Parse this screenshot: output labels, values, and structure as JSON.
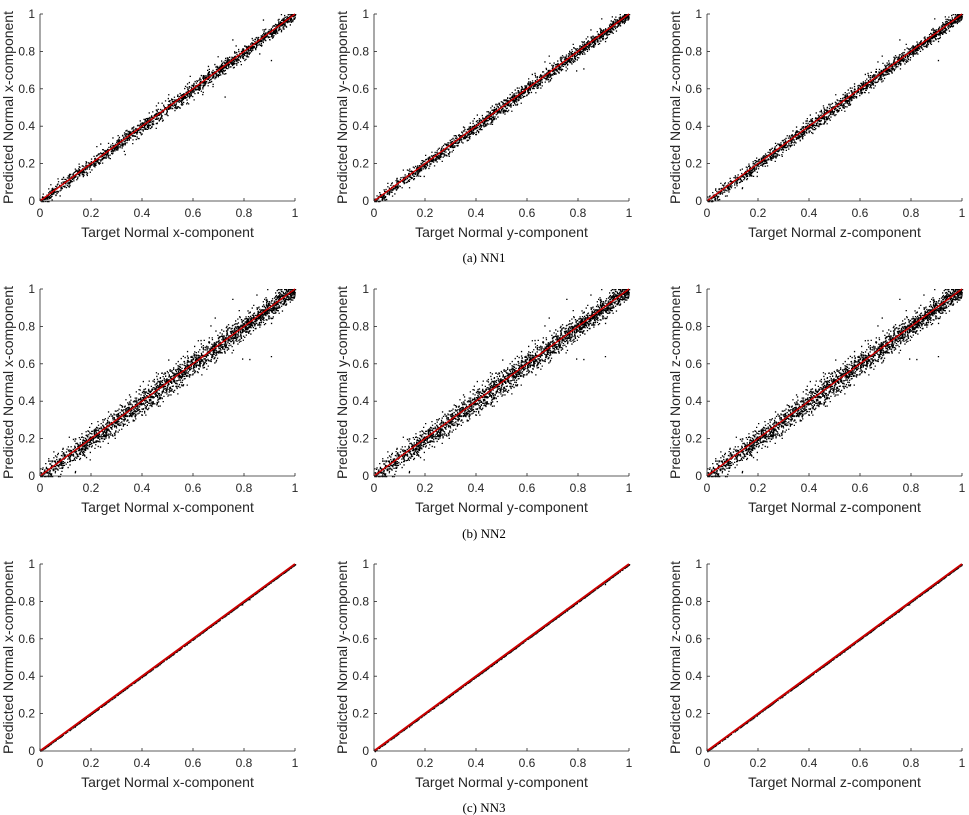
{
  "figure": {
    "captions": [
      "(a) NN1",
      "(b) NN2",
      "(c) NN3"
    ],
    "row_spread": [
      0.02,
      0.035,
      0.0015
    ],
    "point_color": "#000000",
    "line_color": "#cc0000"
  },
  "chart_data": [
    {
      "type": "scatter",
      "panel": "a-x",
      "xlabel": "Target Normal x-component",
      "ylabel": "Predicted Normal x-component",
      "xlim": [
        0,
        1
      ],
      "ylim": [
        0,
        1
      ],
      "xticks": [
        0,
        0.2,
        0.4,
        0.6,
        0.8,
        1
      ],
      "yticks": [
        0,
        0.2,
        0.4,
        0.6,
        0.8,
        1
      ],
      "tick_labels": [
        "0",
        "0.2",
        "0.4",
        "0.6",
        "0.8",
        "1"
      ],
      "reference_line": {
        "x": [
          0,
          1
        ],
        "y": [
          0,
          1
        ]
      },
      "grid": false
    },
    {
      "type": "scatter",
      "panel": "a-y",
      "xlabel": "Target Normal y-component",
      "ylabel": "Predicted Normal y-component",
      "xlim": [
        0,
        1
      ],
      "ylim": [
        0,
        1
      ],
      "xticks": [
        0,
        0.2,
        0.4,
        0.6,
        0.8,
        1
      ],
      "yticks": [
        0,
        0.2,
        0.4,
        0.6,
        0.8,
        1
      ],
      "tick_labels": [
        "0",
        "0.2",
        "0.4",
        "0.6",
        "0.8",
        "1"
      ],
      "reference_line": {
        "x": [
          0,
          1
        ],
        "y": [
          0,
          1
        ]
      },
      "grid": false
    },
    {
      "type": "scatter",
      "panel": "a-z",
      "xlabel": "Target Normal z-component",
      "ylabel": "Predicted Normal z-component",
      "xlim": [
        0,
        1
      ],
      "ylim": [
        0,
        1
      ],
      "xticks": [
        0,
        0.2,
        0.4,
        0.6,
        0.8,
        1
      ],
      "yticks": [
        0,
        0.2,
        0.4,
        0.6,
        0.8,
        1
      ],
      "tick_labels": [
        "0",
        "0.2",
        "0.4",
        "0.6",
        "0.8",
        "1"
      ],
      "reference_line": {
        "x": [
          0,
          1
        ],
        "y": [
          0,
          1
        ]
      },
      "grid": false
    },
    {
      "type": "scatter",
      "panel": "b-x",
      "xlabel": "Target Normal x-component",
      "ylabel": "Predicted Normal x-component",
      "xlim": [
        0,
        1
      ],
      "ylim": [
        0,
        1
      ],
      "xticks": [
        0,
        0.2,
        0.4,
        0.6,
        0.8,
        1
      ],
      "yticks": [
        0,
        0.2,
        0.4,
        0.6,
        0.8,
        1
      ],
      "tick_labels": [
        "0",
        "0.2",
        "0.4",
        "0.6",
        "0.8",
        "1"
      ],
      "reference_line": {
        "x": [
          0,
          1
        ],
        "y": [
          0,
          1
        ]
      },
      "grid": false
    },
    {
      "type": "scatter",
      "panel": "b-y",
      "xlabel": "Target Normal y-component",
      "ylabel": "Predicted Normal y-component",
      "xlim": [
        0,
        1
      ],
      "ylim": [
        0,
        1
      ],
      "xticks": [
        0,
        0.2,
        0.4,
        0.6,
        0.8,
        1
      ],
      "yticks": [
        0,
        0.2,
        0.4,
        0.6,
        0.8,
        1
      ],
      "tick_labels": [
        "0",
        "0.2",
        "0.4",
        "0.6",
        "0.8",
        "1"
      ],
      "reference_line": {
        "x": [
          0,
          1
        ],
        "y": [
          0,
          1
        ]
      },
      "grid": false
    },
    {
      "type": "scatter",
      "panel": "b-z",
      "xlabel": "Target Normal z-component",
      "ylabel": "Predicted Normal z-component",
      "xlim": [
        0,
        1
      ],
      "ylim": [
        0,
        1
      ],
      "xticks": [
        0,
        0.2,
        0.4,
        0.6,
        0.8,
        1
      ],
      "yticks": [
        0,
        0.2,
        0.4,
        0.6,
        0.8,
        1
      ],
      "tick_labels": [
        "0",
        "0.2",
        "0.4",
        "0.6",
        "0.8",
        "1"
      ],
      "reference_line": {
        "x": [
          0,
          1
        ],
        "y": [
          0,
          1
        ]
      },
      "grid": false
    },
    {
      "type": "scatter",
      "panel": "c-x",
      "xlabel": "Target Normal x-component",
      "ylabel": "Predicted Normal x-component",
      "xlim": [
        0,
        1
      ],
      "ylim": [
        0,
        1
      ],
      "xticks": [
        0,
        0.2,
        0.4,
        0.6,
        0.8,
        1
      ],
      "yticks": [
        0,
        0.2,
        0.4,
        0.6,
        0.8,
        1
      ],
      "tick_labels": [
        "0",
        "0.2",
        "0.4",
        "0.6",
        "0.8",
        "1"
      ],
      "reference_line": {
        "x": [
          0,
          1
        ],
        "y": [
          0,
          1
        ]
      },
      "grid": false
    },
    {
      "type": "scatter",
      "panel": "c-y",
      "xlabel": "Target Normal y-component",
      "ylabel": "Predicted Normal y-component",
      "xlim": [
        0,
        1
      ],
      "ylim": [
        0,
        1
      ],
      "xticks": [
        0,
        0.2,
        0.4,
        0.6,
        0.8,
        1
      ],
      "yticks": [
        0,
        0.2,
        0.4,
        0.6,
        0.8,
        1
      ],
      "tick_labels": [
        "0",
        "0.2",
        "0.4",
        "0.6",
        "0.8",
        "1"
      ],
      "reference_line": {
        "x": [
          0,
          1
        ],
        "y": [
          0,
          1
        ]
      },
      "grid": false
    },
    {
      "type": "scatter",
      "panel": "c-z",
      "xlabel": "Target Normal z-component",
      "ylabel": "Predicted Normal z-component",
      "xlim": [
        0,
        1
      ],
      "ylim": [
        0,
        1
      ],
      "xticks": [
        0,
        0.2,
        0.4,
        0.6,
        0.8,
        1
      ],
      "yticks": [
        0,
        0.2,
        0.4,
        0.6,
        0.8,
        1
      ],
      "tick_labels": [
        "0",
        "0.2",
        "0.4",
        "0.6",
        "0.8",
        "1"
      ],
      "reference_line": {
        "x": [
          0,
          1
        ],
        "y": [
          0,
          1
        ]
      },
      "grid": false
    }
  ]
}
